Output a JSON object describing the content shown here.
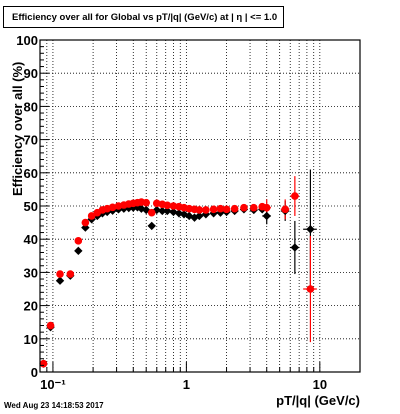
{
  "title": "Efficiency over all for Global vs pT/|q| (GeV/c) at |  η | <= 1.0",
  "timestamp": "Wed Aug 23 14:18:53 2017",
  "chart_data": {
    "type": "scatter",
    "xlabel": "pT/|q| (GeV/c)",
    "ylabel": "Efficiency over all (%)",
    "xscale": "log",
    "xlim": [
      0.08,
      20
    ],
    "ylim": [
      0,
      100
    ],
    "yticks": [
      0,
      10,
      20,
      30,
      40,
      50,
      60,
      70,
      80,
      90,
      100
    ],
    "xtick_labels": [
      "10⁻¹",
      "1",
      "10"
    ],
    "xtick_values": [
      0.1,
      1,
      10
    ],
    "grid": true,
    "series": [
      {
        "color": "#000000",
        "marker": "diamond",
        "points": [
          {
            "x": 0.085,
            "y": 2.5,
            "xerr": 0.003
          },
          {
            "x": 0.096,
            "y": 13.5,
            "xerr": 0.005
          },
          {
            "x": 0.113,
            "y": 27.5,
            "xerr": 0.005
          },
          {
            "x": 0.135,
            "y": 29.0,
            "xerr": 0.005
          },
          {
            "x": 0.155,
            "y": 36.5,
            "xerr": 0.005
          },
          {
            "x": 0.175,
            "y": 43.5,
            "xerr": 0.005
          },
          {
            "x": 0.195,
            "y": 46.0
          },
          {
            "x": 0.215,
            "y": 47.0
          },
          {
            "x": 0.235,
            "y": 47.8
          },
          {
            "x": 0.255,
            "y": 48.2
          },
          {
            "x": 0.28,
            "y": 48.6
          },
          {
            "x": 0.31,
            "y": 49.0
          },
          {
            "x": 0.34,
            "y": 49.2
          },
          {
            "x": 0.37,
            "y": 49.4
          },
          {
            "x": 0.4,
            "y": 49.5
          },
          {
            "x": 0.43,
            "y": 49.6
          },
          {
            "x": 0.46,
            "y": 49.2
          },
          {
            "x": 0.5,
            "y": 48.8
          },
          {
            "x": 0.55,
            "y": 44.0
          },
          {
            "x": 0.6,
            "y": 48.8
          },
          {
            "x": 0.66,
            "y": 48.5
          },
          {
            "x": 0.72,
            "y": 48.5
          },
          {
            "x": 0.8,
            "y": 48.2
          },
          {
            "x": 0.88,
            "y": 47.8
          },
          {
            "x": 0.96,
            "y": 47.5
          },
          {
            "x": 1.05,
            "y": 47.0
          },
          {
            "x": 1.15,
            "y": 46.5
          },
          {
            "x": 1.25,
            "y": 47.0
          },
          {
            "x": 1.4,
            "y": 47.5
          },
          {
            "x": 1.6,
            "y": 47.8
          },
          {
            "x": 1.8,
            "y": 48.0
          },
          {
            "x": 2.0,
            "y": 48.2
          },
          {
            "x": 2.3,
            "y": 48.5
          },
          {
            "x": 2.7,
            "y": 49.0
          },
          {
            "x": 3.2,
            "y": 48.8
          },
          {
            "x": 3.7,
            "y": 49.0
          },
          {
            "x": 4.0,
            "y": 47.0,
            "xerr": 0.3,
            "yerr": 2.5
          },
          {
            "x": 5.5,
            "y": 48.5,
            "xerr": 0.4,
            "yerr": 3
          },
          {
            "x": 6.5,
            "y": 37.5,
            "xerr": 0.5,
            "yerr": 8
          },
          {
            "x": 8.5,
            "y": 43.0,
            "xerr": 1.0,
            "yerr": 18
          }
        ]
      },
      {
        "color": "#ff0000",
        "marker": "circle",
        "points": [
          {
            "x": 0.085,
            "y": 2.5,
            "xerr": 0.003
          },
          {
            "x": 0.096,
            "y": 14.0,
            "xerr": 0.005
          },
          {
            "x": 0.113,
            "y": 29.5,
            "xerr": 0.005
          },
          {
            "x": 0.135,
            "y": 29.5,
            "xerr": 0.005
          },
          {
            "x": 0.155,
            "y": 39.5,
            "xerr": 0.005
          },
          {
            "x": 0.175,
            "y": 45.0,
            "xerr": 0.005
          },
          {
            "x": 0.195,
            "y": 47.0
          },
          {
            "x": 0.215,
            "y": 48.0
          },
          {
            "x": 0.235,
            "y": 48.8
          },
          {
            "x": 0.255,
            "y": 49.2
          },
          {
            "x": 0.28,
            "y": 49.6
          },
          {
            "x": 0.31,
            "y": 50.0
          },
          {
            "x": 0.34,
            "y": 50.3
          },
          {
            "x": 0.37,
            "y": 50.6
          },
          {
            "x": 0.4,
            "y": 50.8
          },
          {
            "x": 0.43,
            "y": 51.0
          },
          {
            "x": 0.46,
            "y": 51.2
          },
          {
            "x": 0.5,
            "y": 51.0
          },
          {
            "x": 0.55,
            "y": 48.0
          },
          {
            "x": 0.6,
            "y": 50.8
          },
          {
            "x": 0.66,
            "y": 50.5
          },
          {
            "x": 0.72,
            "y": 50.2
          },
          {
            "x": 0.8,
            "y": 50.0
          },
          {
            "x": 0.88,
            "y": 49.8
          },
          {
            "x": 0.96,
            "y": 49.5
          },
          {
            "x": 1.05,
            "y": 49.2
          },
          {
            "x": 1.15,
            "y": 49.0
          },
          {
            "x": 1.25,
            "y": 48.8
          },
          {
            "x": 1.4,
            "y": 48.8
          },
          {
            "x": 1.6,
            "y": 49.0
          },
          {
            "x": 1.8,
            "y": 49.2
          },
          {
            "x": 2.0,
            "y": 49.0
          },
          {
            "x": 2.3,
            "y": 49.2
          },
          {
            "x": 2.7,
            "y": 49.5
          },
          {
            "x": 3.2,
            "y": 49.5
          },
          {
            "x": 3.7,
            "y": 49.8
          },
          {
            "x": 4.0,
            "y": 49.5,
            "xerr": 0.3,
            "yerr": 2.5
          },
          {
            "x": 5.5,
            "y": 49.0,
            "xerr": 0.4,
            "yerr": 3
          },
          {
            "x": 6.5,
            "y": 53.0,
            "xerr": 0.5,
            "yerr": 6
          },
          {
            "x": 8.5,
            "y": 25.0,
            "xerr": 1.0,
            "yerr": 16
          }
        ]
      }
    ]
  }
}
